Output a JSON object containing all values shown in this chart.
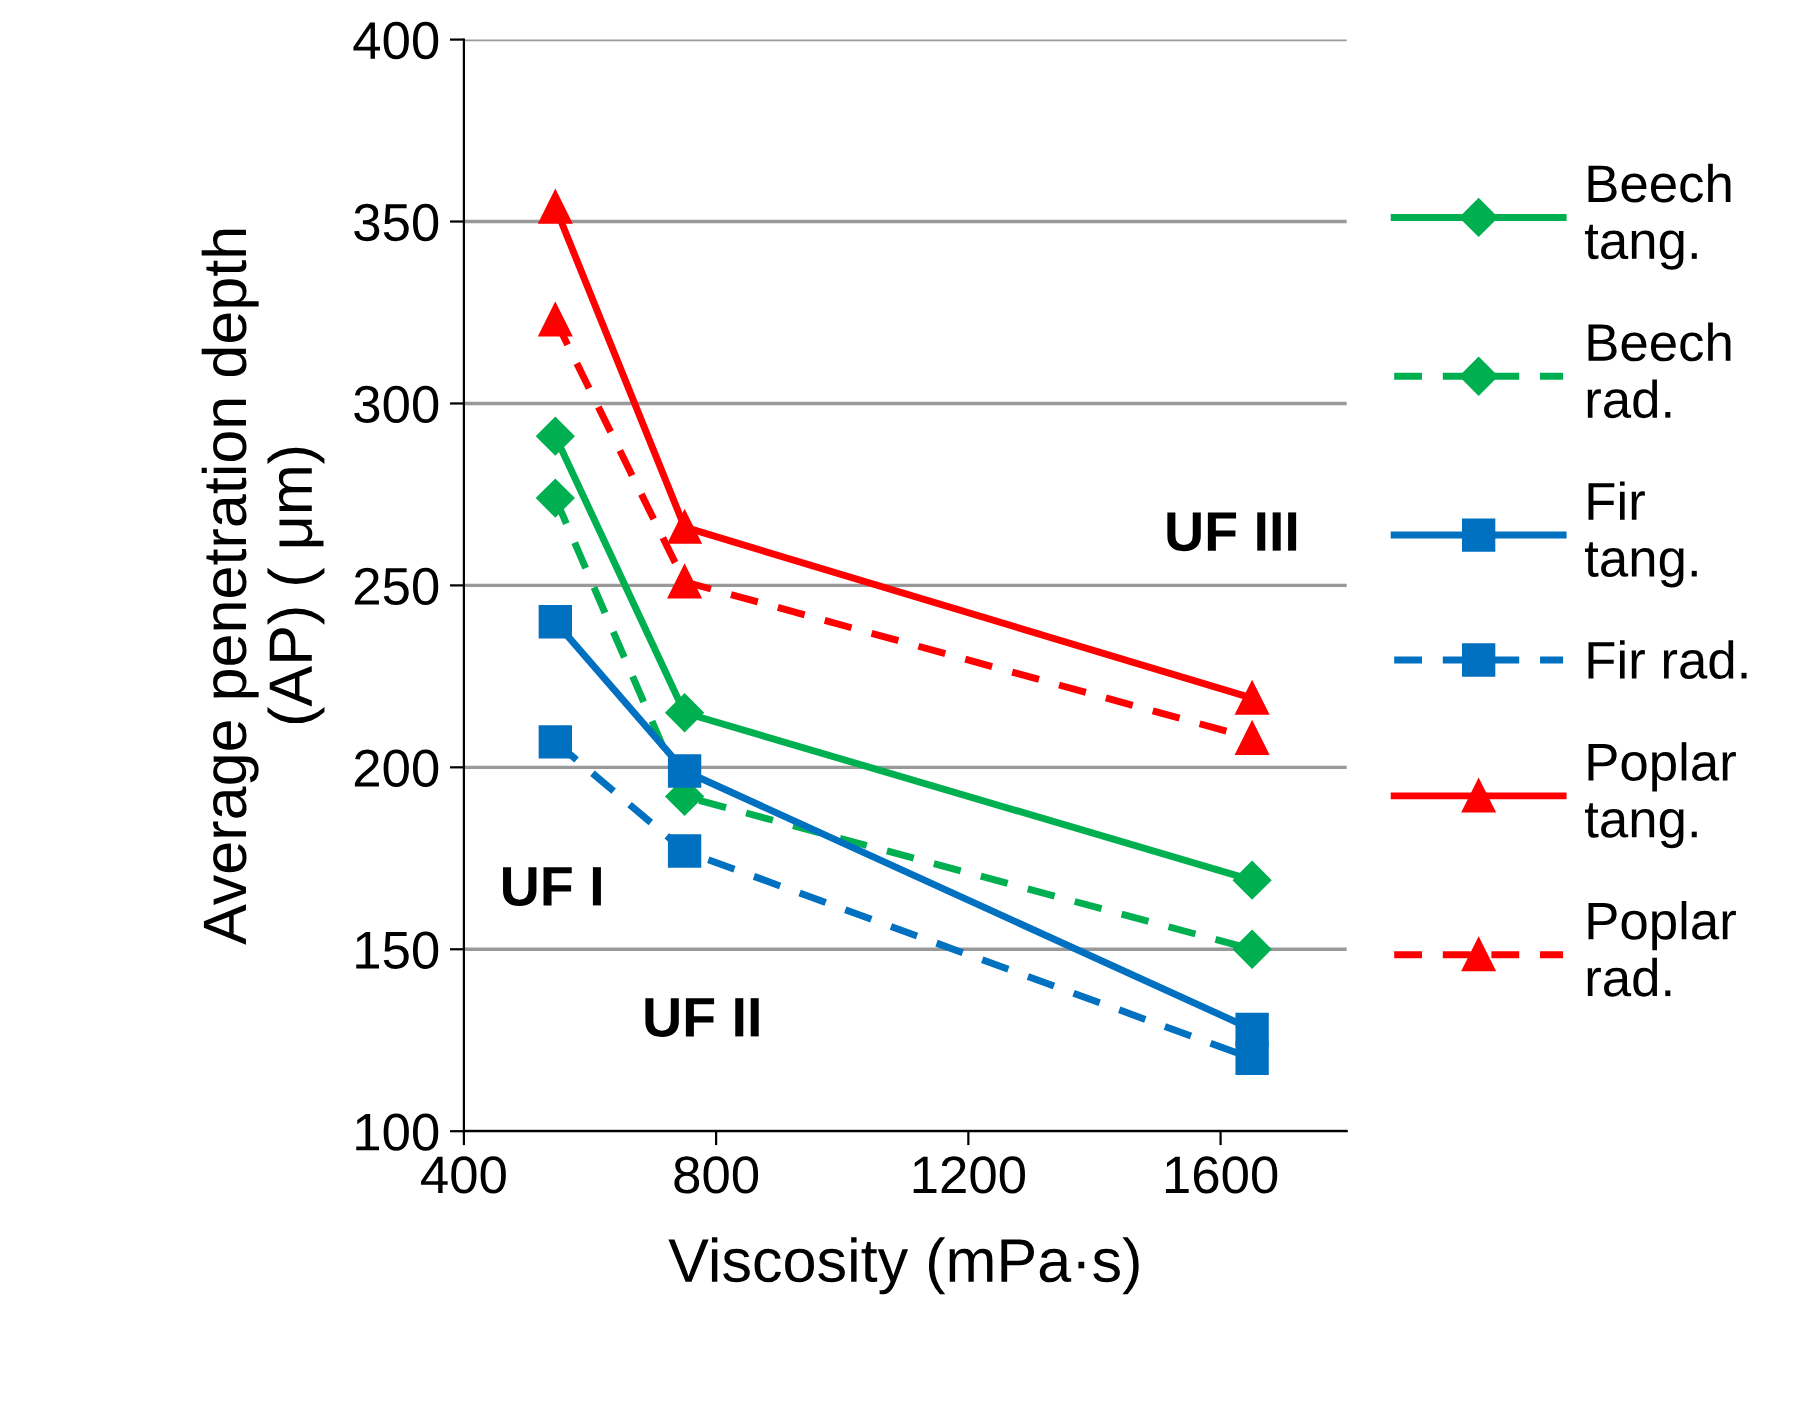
{
  "chart_data": {
    "type": "line",
    "xlabel": "Viscosity (mPa·s)",
    "ylabel": "Average penetration depth\n(AP) ( μm)",
    "xlim": [
      400,
      1800
    ],
    "xticks": [
      400,
      800,
      1200,
      1600
    ],
    "ylim": [
      100,
      400
    ],
    "yticks": [
      100,
      150,
      200,
      250,
      300,
      350,
      400
    ],
    "grid": "y",
    "legend": "right",
    "series": [
      {
        "name": "Beech\ntang.",
        "color": "#00b050",
        "marker": "diamond",
        "line_style": "solid",
        "x": [
          545,
          750,
          1650
        ],
        "values": [
          291,
          215,
          169
        ]
      },
      {
        "name": "Beech\nrad.",
        "color": "#00b050",
        "marker": "diamond",
        "line_style": "dashed",
        "x": [
          545,
          750,
          1650
        ],
        "values": [
          274,
          192,
          150
        ]
      },
      {
        "name": "Fir\ntang.",
        "color": "#0070c0",
        "marker": "square",
        "line_style": "solid",
        "x": [
          545,
          750,
          1650
        ],
        "values": [
          240,
          199,
          128
        ]
      },
      {
        "name": "Fir rad.",
        "color": "#0070c0",
        "marker": "square",
        "line_style": "dashed",
        "x": [
          545,
          750,
          1650
        ],
        "values": [
          207,
          177,
          120
        ]
      },
      {
        "name": "Poplar\ntang.",
        "color": "#ff0000",
        "marker": "triangle",
        "line_style": "solid",
        "x": [
          545,
          750,
          1650
        ],
        "values": [
          354,
          266,
          219
        ]
      },
      {
        "name": "Poplar\nrad.",
        "color": "#ff0000",
        "marker": "triangle",
        "line_style": "dashed",
        "x": [
          545,
          750,
          1650
        ],
        "values": [
          323,
          251,
          208
        ]
      }
    ],
    "annotations": [
      "UF I",
      "UF II",
      "UF III"
    ]
  }
}
